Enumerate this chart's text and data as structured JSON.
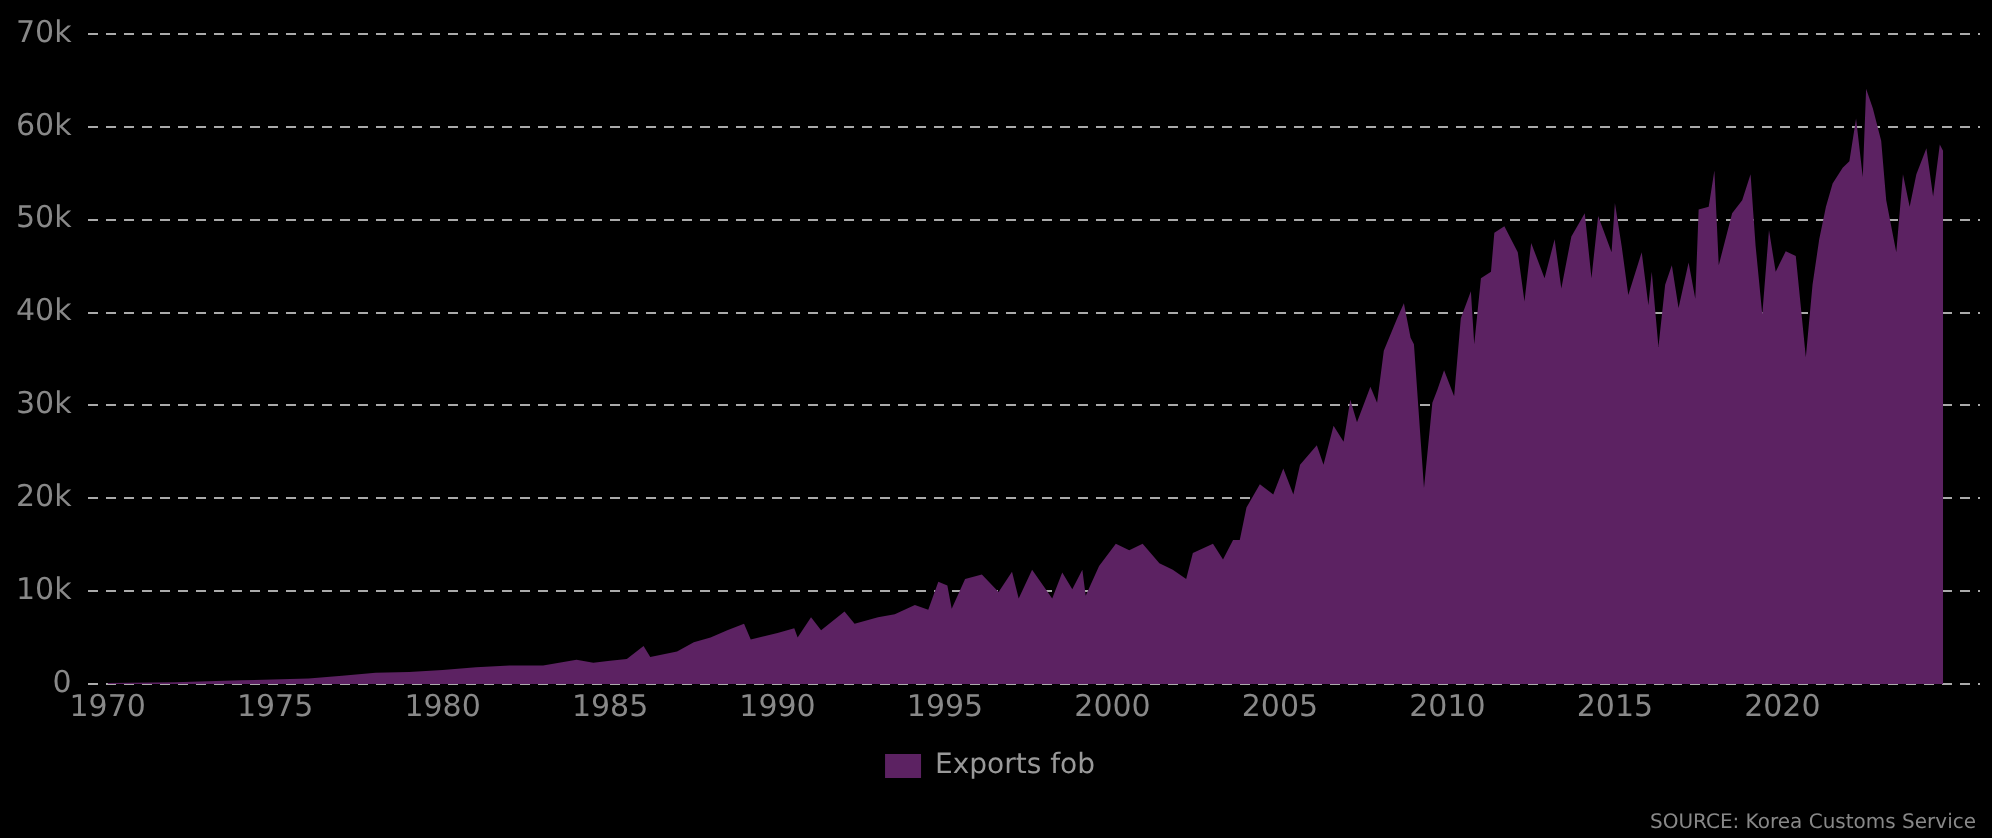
{
  "chart_data": {
    "type": "area",
    "x": [
      1970,
      1972,
      1974,
      1976,
      1977,
      1978,
      1979,
      1980,
      1981,
      1982,
      1983,
      1984,
      1984.5,
      1985,
      1985.5,
      1986.0,
      1986.2,
      1987,
      1987.5,
      1988,
      1988.5,
      1989.0,
      1989.2,
      1990,
      1990.5,
      1990.6,
      1991,
      1991.3,
      1992,
      1992.3,
      1993,
      1993.5,
      1994.1,
      1994.5,
      1994.8,
      1995.07,
      1995.2,
      1995.6,
      1996.1,
      1996.6,
      1997.0,
      1997.2,
      1997.6,
      1998.2,
      1998.5,
      1998.8,
      1999.1,
      1999.2,
      1999.6,
      2000.1,
      2000.5,
      2000.9,
      2001.4,
      2001.8,
      2002.2,
      2002.4,
      2003.0,
      2003.3,
      2003.6,
      2003.8,
      2004.0,
      2004.4,
      2004.8,
      2005.1,
      2005.4,
      2005.6,
      2006.1,
      2006.3,
      2006.6,
      2006.9,
      2007.1,
      2007.3,
      2007.7,
      2007.9,
      2008.1,
      2008.5,
      2008.7,
      2008.9,
      2009.0,
      2009.3,
      2009.55,
      2009.7,
      2009.9,
      2010.2,
      2010.4,
      2010.7,
      2010.8,
      2011.0,
      2011.3,
      2011.4,
      2011.7,
      2012.1,
      2012.3,
      2012.5,
      2012.9,
      2013.2,
      2013.4,
      2013.7,
      2014.1,
      2014.3,
      2014.5,
      2014.9,
      2015.0,
      2015.2,
      2015.4,
      2015.8,
      2016.0,
      2016.1,
      2016.3,
      2016.5,
      2016.7,
      2016.9,
      2017.2,
      2017.4,
      2017.5,
      2017.8,
      2017.97,
      2018.1,
      2018.5,
      2018.8,
      2019.05,
      2019.2,
      2019.4,
      2019.6,
      2019.8,
      2020.1,
      2020.4,
      2020.7,
      2020.9,
      2021.1,
      2021.3,
      2021.5,
      2021.8,
      2022.0,
      2022.2,
      2022.4,
      2022.5,
      2022.7,
      2022.95,
      2023.1,
      2023.4,
      2023.6,
      2023.8,
      2024.0,
      2024.3,
      2024.5,
      2024.7,
      2024.8
    ],
    "series": [
      {
        "name": "Exports fob",
        "color": "#5c2262",
        "values": [
          100,
          200,
          400,
          600,
          900,
          1200,
          1300,
          1500,
          1800,
          2000,
          2000,
          2600,
          2300,
          2500,
          2700,
          4100,
          2900,
          3500,
          4500,
          5000,
          5800,
          6500,
          4800,
          5500,
          6000,
          5000,
          7200,
          5800,
          7800,
          6500,
          7200,
          7500,
          8500,
          8000,
          11000,
          10600,
          8100,
          11300,
          11800,
          9900,
          12100,
          9200,
          12300,
          9200,
          12000,
          10200,
          12300,
          9500,
          12700,
          15100,
          14400,
          15100,
          13000,
          12300,
          11300,
          14100,
          15100,
          13400,
          15500,
          15500,
          19000,
          21500,
          20400,
          23200,
          20400,
          23600,
          25700,
          23600,
          27800,
          26100,
          30600,
          28200,
          32000,
          30300,
          35900,
          39400,
          41000,
          37300,
          36600,
          21100,
          30300,
          31700,
          33800,
          31000,
          39400,
          42300,
          36600,
          43700,
          44400,
          48600,
          49300,
          46500,
          41200,
          47500,
          43700,
          47900,
          42600,
          48200,
          50700,
          43700,
          50400,
          46500,
          51800,
          47200,
          41900,
          46500,
          40800,
          44400,
          36300,
          43000,
          45100,
          40500,
          45400,
          41500,
          51100,
          51400,
          55300,
          45100,
          50700,
          52100,
          54900,
          47200,
          39800,
          48900,
          44400,
          46600,
          46100,
          35200,
          43000,
          47900,
          51400,
          53900,
          55600,
          56300,
          60900,
          54600,
          64100,
          62000,
          58500,
          52100,
          46500,
          54900,
          51400,
          54900,
          57700,
          52500,
          58100,
          57400
        ]
      }
    ],
    "xlim": [
      1969.4,
      2025.9
    ],
    "xticks": [
      1970,
      1975,
      1980,
      1985,
      1990,
      1995,
      2000,
      2005,
      2010,
      2015,
      2020
    ],
    "ylim": [
      0,
      70000
    ],
    "yticks": [
      0,
      {
        "value": 10000,
        "label": "10k"
      },
      {
        "value": 20000,
        "label": "20k"
      },
      {
        "value": 30000,
        "label": "30k"
      },
      {
        "value": 40000,
        "label": "40k"
      },
      {
        "value": 50000,
        "label": "50k"
      },
      {
        "value": 60000,
        "label": "60k"
      },
      {
        "value": 70000,
        "label": "70k"
      }
    ],
    "grid": "y",
    "legend": "bottom",
    "annotations": [
      "SOURCE: Korea Customs Service"
    ]
  }
}
